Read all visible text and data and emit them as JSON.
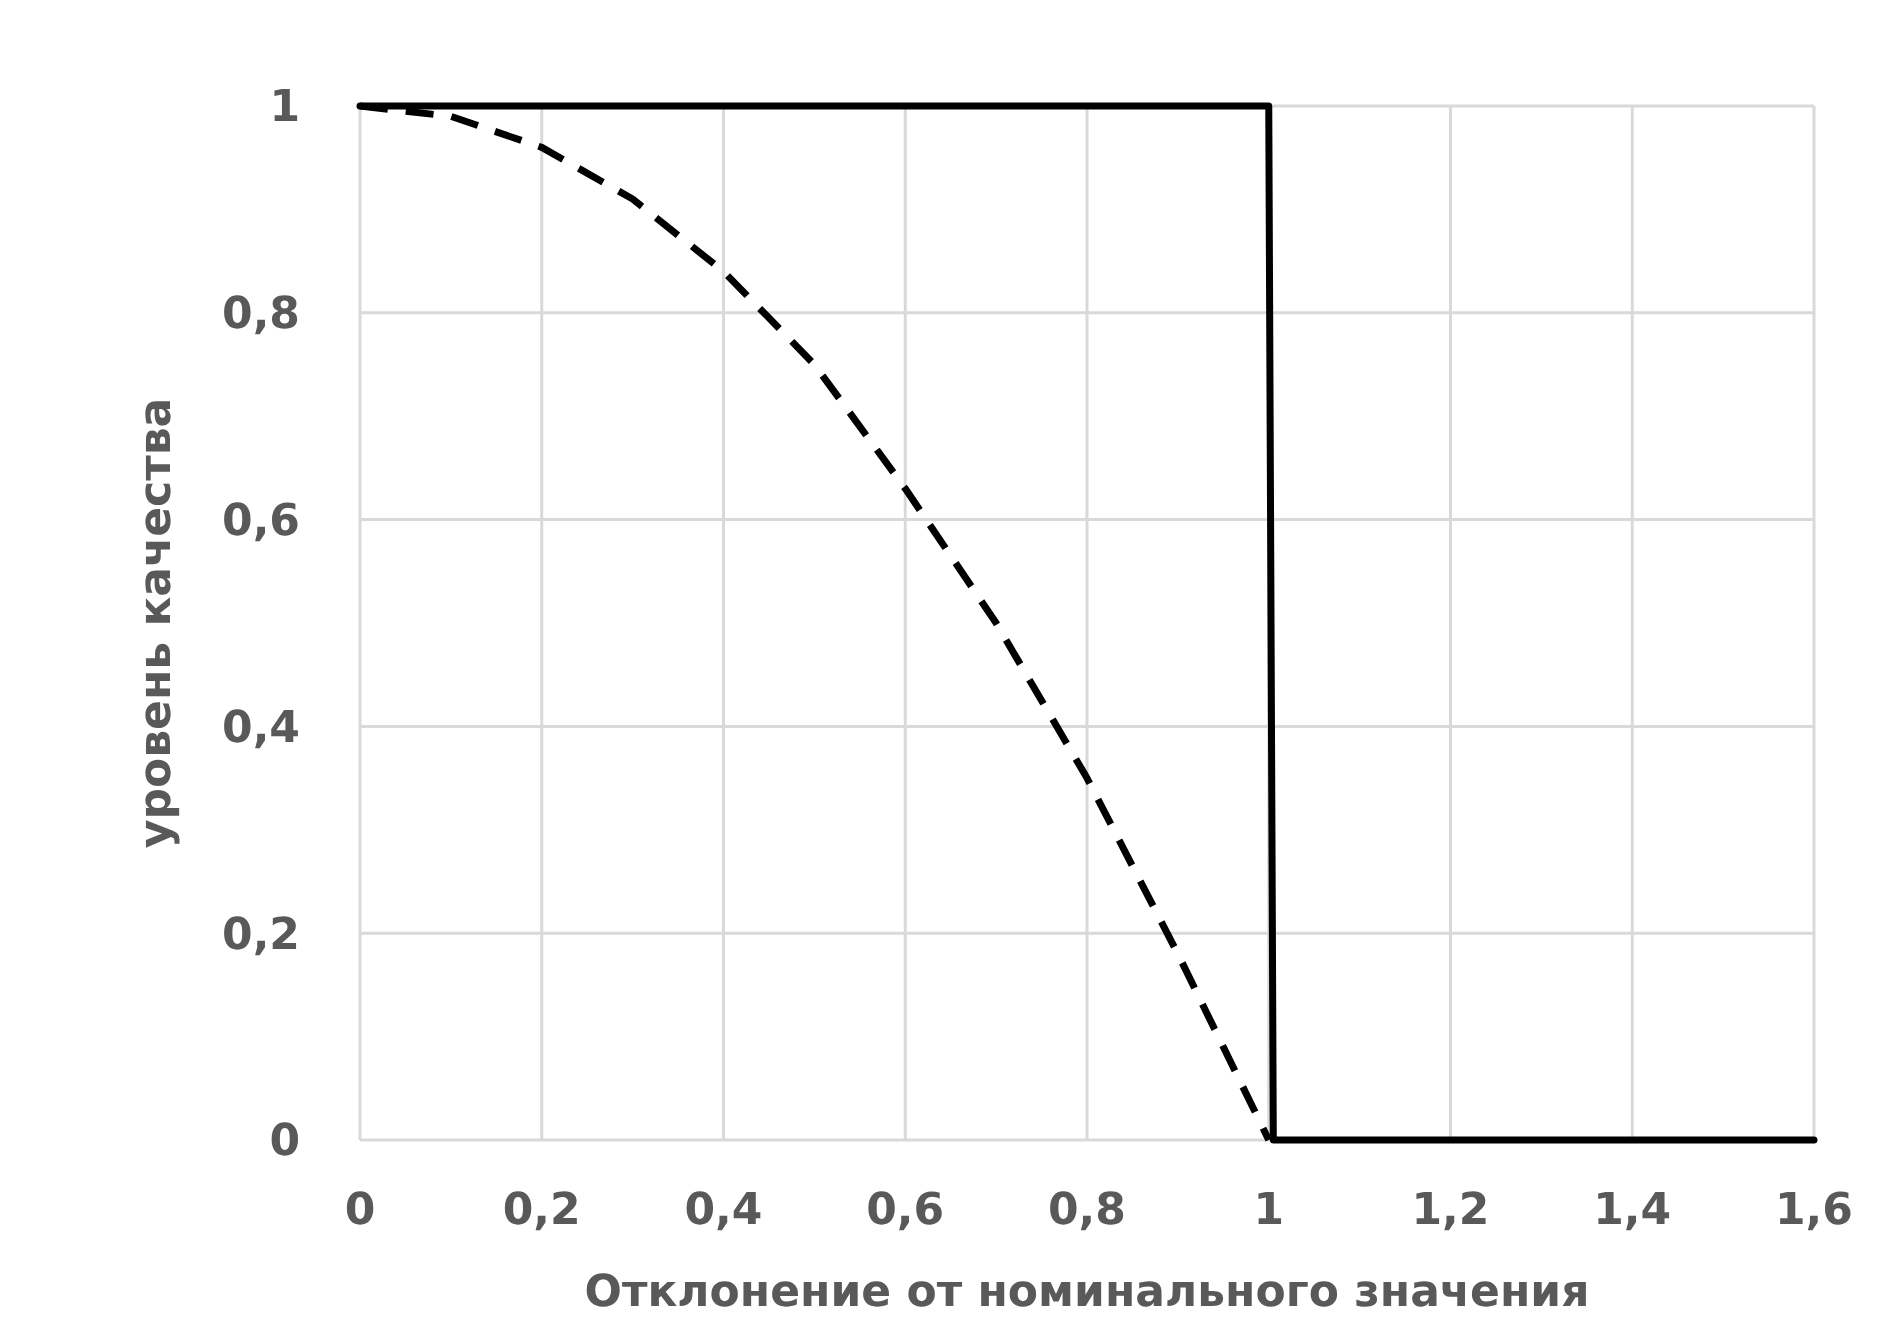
{
  "chart_data": {
    "type": "line",
    "xlabel": "Отклонение от номинального значения",
    "ylabel": "уровень качества",
    "xlim": [
      0,
      1.6
    ],
    "ylim": [
      0,
      1
    ],
    "xticks": [
      0,
      {
        "value": 0.2,
        "label": "0,2"
      },
      {
        "value": 0.4,
        "label": "0,4"
      },
      {
        "value": 0.6,
        "label": "0,6"
      },
      {
        "value": 0.8,
        "label": "0,8"
      },
      1,
      {
        "value": 1.2,
        "label": "1,2"
      },
      {
        "value": 1.4,
        "label": "1,4"
      },
      {
        "value": 1.6,
        "label": "1,6"
      }
    ],
    "yticks": [
      0,
      {
        "value": 0.2,
        "label": "0,2"
      },
      {
        "value": 0.4,
        "label": "0,4"
      },
      {
        "value": 0.6,
        "label": "0,6"
      },
      {
        "value": 0.8,
        "label": "0,8"
      },
      1
    ],
    "grid": true,
    "marker": "none",
    "series": [
      {
        "color": "#000000",
        "line_style": "solid",
        "x": [
          0,
          1,
          1.005,
          1.6
        ],
        "values": [
          1,
          1,
          0,
          0
        ]
      },
      {
        "color": "#000000",
        "line_style": "dashed",
        "x": [
          0,
          0.1,
          0.2,
          0.3,
          0.4,
          0.5,
          0.6,
          0.7,
          0.8,
          0.9,
          1
        ],
        "values": [
          1,
          0.99,
          0.96,
          0.91,
          0.84,
          0.75,
          0.63,
          0.5,
          0.35,
          0.18,
          0
        ]
      }
    ]
  }
}
